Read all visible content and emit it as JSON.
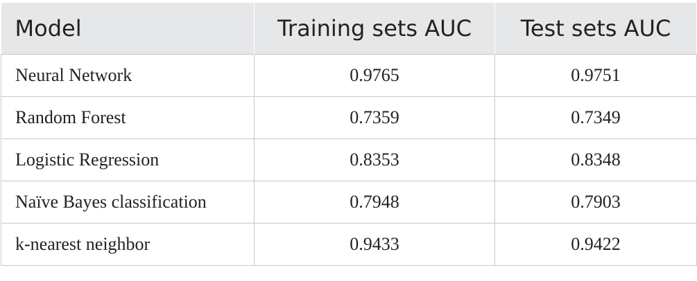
{
  "table": {
    "header": [
      "Model",
      "Training sets AUC",
      "Test sets AUC"
    ],
    "rows": [
      [
        "Neural Network",
        "0.9765",
        "0.9751"
      ],
      [
        "Random Forest",
        "0.7359",
        "0.7349"
      ],
      [
        "Logistic Regression",
        "0.8353",
        "0.8348"
      ],
      [
        "Naïve Bayes classification",
        "0.7948",
        "0.7903"
      ],
      [
        "k-nearest neighbor",
        "0.9433",
        "0.9422"
      ]
    ]
  }
}
